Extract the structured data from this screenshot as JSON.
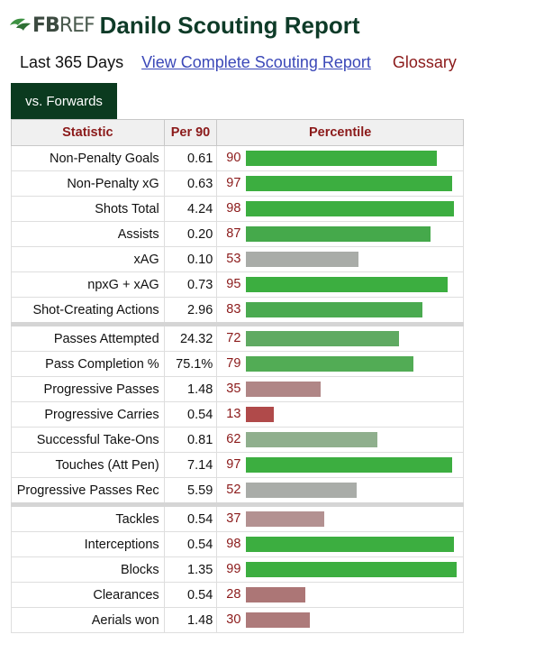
{
  "header": {
    "logo_prefix": "FB",
    "logo_suffix": "REF",
    "title": "Danilo Scouting Report"
  },
  "subnav": {
    "period": "Last 365 Days",
    "full_report_link": "View Complete Scouting Report",
    "glossary_link": "Glossary"
  },
  "tab": {
    "label": "vs. Forwards"
  },
  "table": {
    "headers": {
      "statistic": "Statistic",
      "per90": "Per 90",
      "percentile": "Percentile"
    },
    "groups": [
      [
        {
          "stat": "Non-Penalty Goals",
          "per90": "0.61",
          "percentile": "90",
          "pct_value": 90,
          "bar_color": "#3cae40"
        },
        {
          "stat": "Non-Penalty xG",
          "per90": "0.63",
          "percentile": "97",
          "pct_value": 97,
          "bar_color": "#3cae40"
        },
        {
          "stat": "Shots Total",
          "per90": "4.24",
          "percentile": "98",
          "pct_value": 98,
          "bar_color": "#3cae40"
        },
        {
          "stat": "Assists",
          "per90": "0.20",
          "percentile": "87",
          "pct_value": 87,
          "bar_color": "#45a94b"
        },
        {
          "stat": "xAG",
          "per90": "0.10",
          "percentile": "53",
          "pct_value": 53,
          "bar_color": "#a9aca8"
        },
        {
          "stat": "npxG + xAG",
          "per90": "0.73",
          "percentile": "95",
          "pct_value": 95,
          "bar_color": "#3cae40"
        },
        {
          "stat": "Shot-Creating Actions",
          "per90": "2.96",
          "percentile": "83",
          "pct_value": 83,
          "bar_color": "#4aaa50"
        }
      ],
      [
        {
          "stat": "Passes Attempted",
          "per90": "24.32",
          "percentile": "72",
          "pct_value": 72,
          "bar_color": "#5faa62"
        },
        {
          "stat": "Pass Completion %",
          "per90": "75.1%",
          "percentile": "79",
          "pct_value": 79,
          "bar_color": "#52ac55"
        },
        {
          "stat": "Progressive Passes",
          "per90": "1.48",
          "percentile": "35",
          "pct_value": 35,
          "bar_color": "#b08686"
        },
        {
          "stat": "Progressive Carries",
          "per90": "0.54",
          "percentile": "13",
          "pct_value": 13,
          "bar_color": "#b04a4a"
        },
        {
          "stat": "Successful Take-Ons",
          "per90": "0.81",
          "percentile": "62",
          "pct_value": 62,
          "bar_color": "#8faf8d"
        },
        {
          "stat": "Touches (Att Pen)",
          "per90": "7.14",
          "percentile": "97",
          "pct_value": 97,
          "bar_color": "#3cae40"
        },
        {
          "stat": "Progressive Passes Rec",
          "per90": "5.59",
          "percentile": "52",
          "pct_value": 52,
          "bar_color": "#a9aca8"
        }
      ],
      [
        {
          "stat": "Tackles",
          "per90": "0.54",
          "percentile": "37",
          "pct_value": 37,
          "bar_color": "#b39191"
        },
        {
          "stat": "Interceptions",
          "per90": "0.54",
          "percentile": "98",
          "pct_value": 98,
          "bar_color": "#3cae40"
        },
        {
          "stat": "Blocks",
          "per90": "1.35",
          "percentile": "99",
          "pct_value": 99,
          "bar_color": "#3cae40"
        },
        {
          "stat": "Clearances",
          "per90": "0.54",
          "percentile": "28",
          "pct_value": 28,
          "bar_color": "#ac7676"
        },
        {
          "stat": "Aerials won",
          "per90": "1.48",
          "percentile": "30",
          "pct_value": 30,
          "bar_color": "#ad7a7a"
        }
      ]
    ]
  },
  "colors": {
    "brand_green": "#0b3a1f",
    "header_red": "#8b1a1a",
    "link_blue": "#3b48b8"
  }
}
